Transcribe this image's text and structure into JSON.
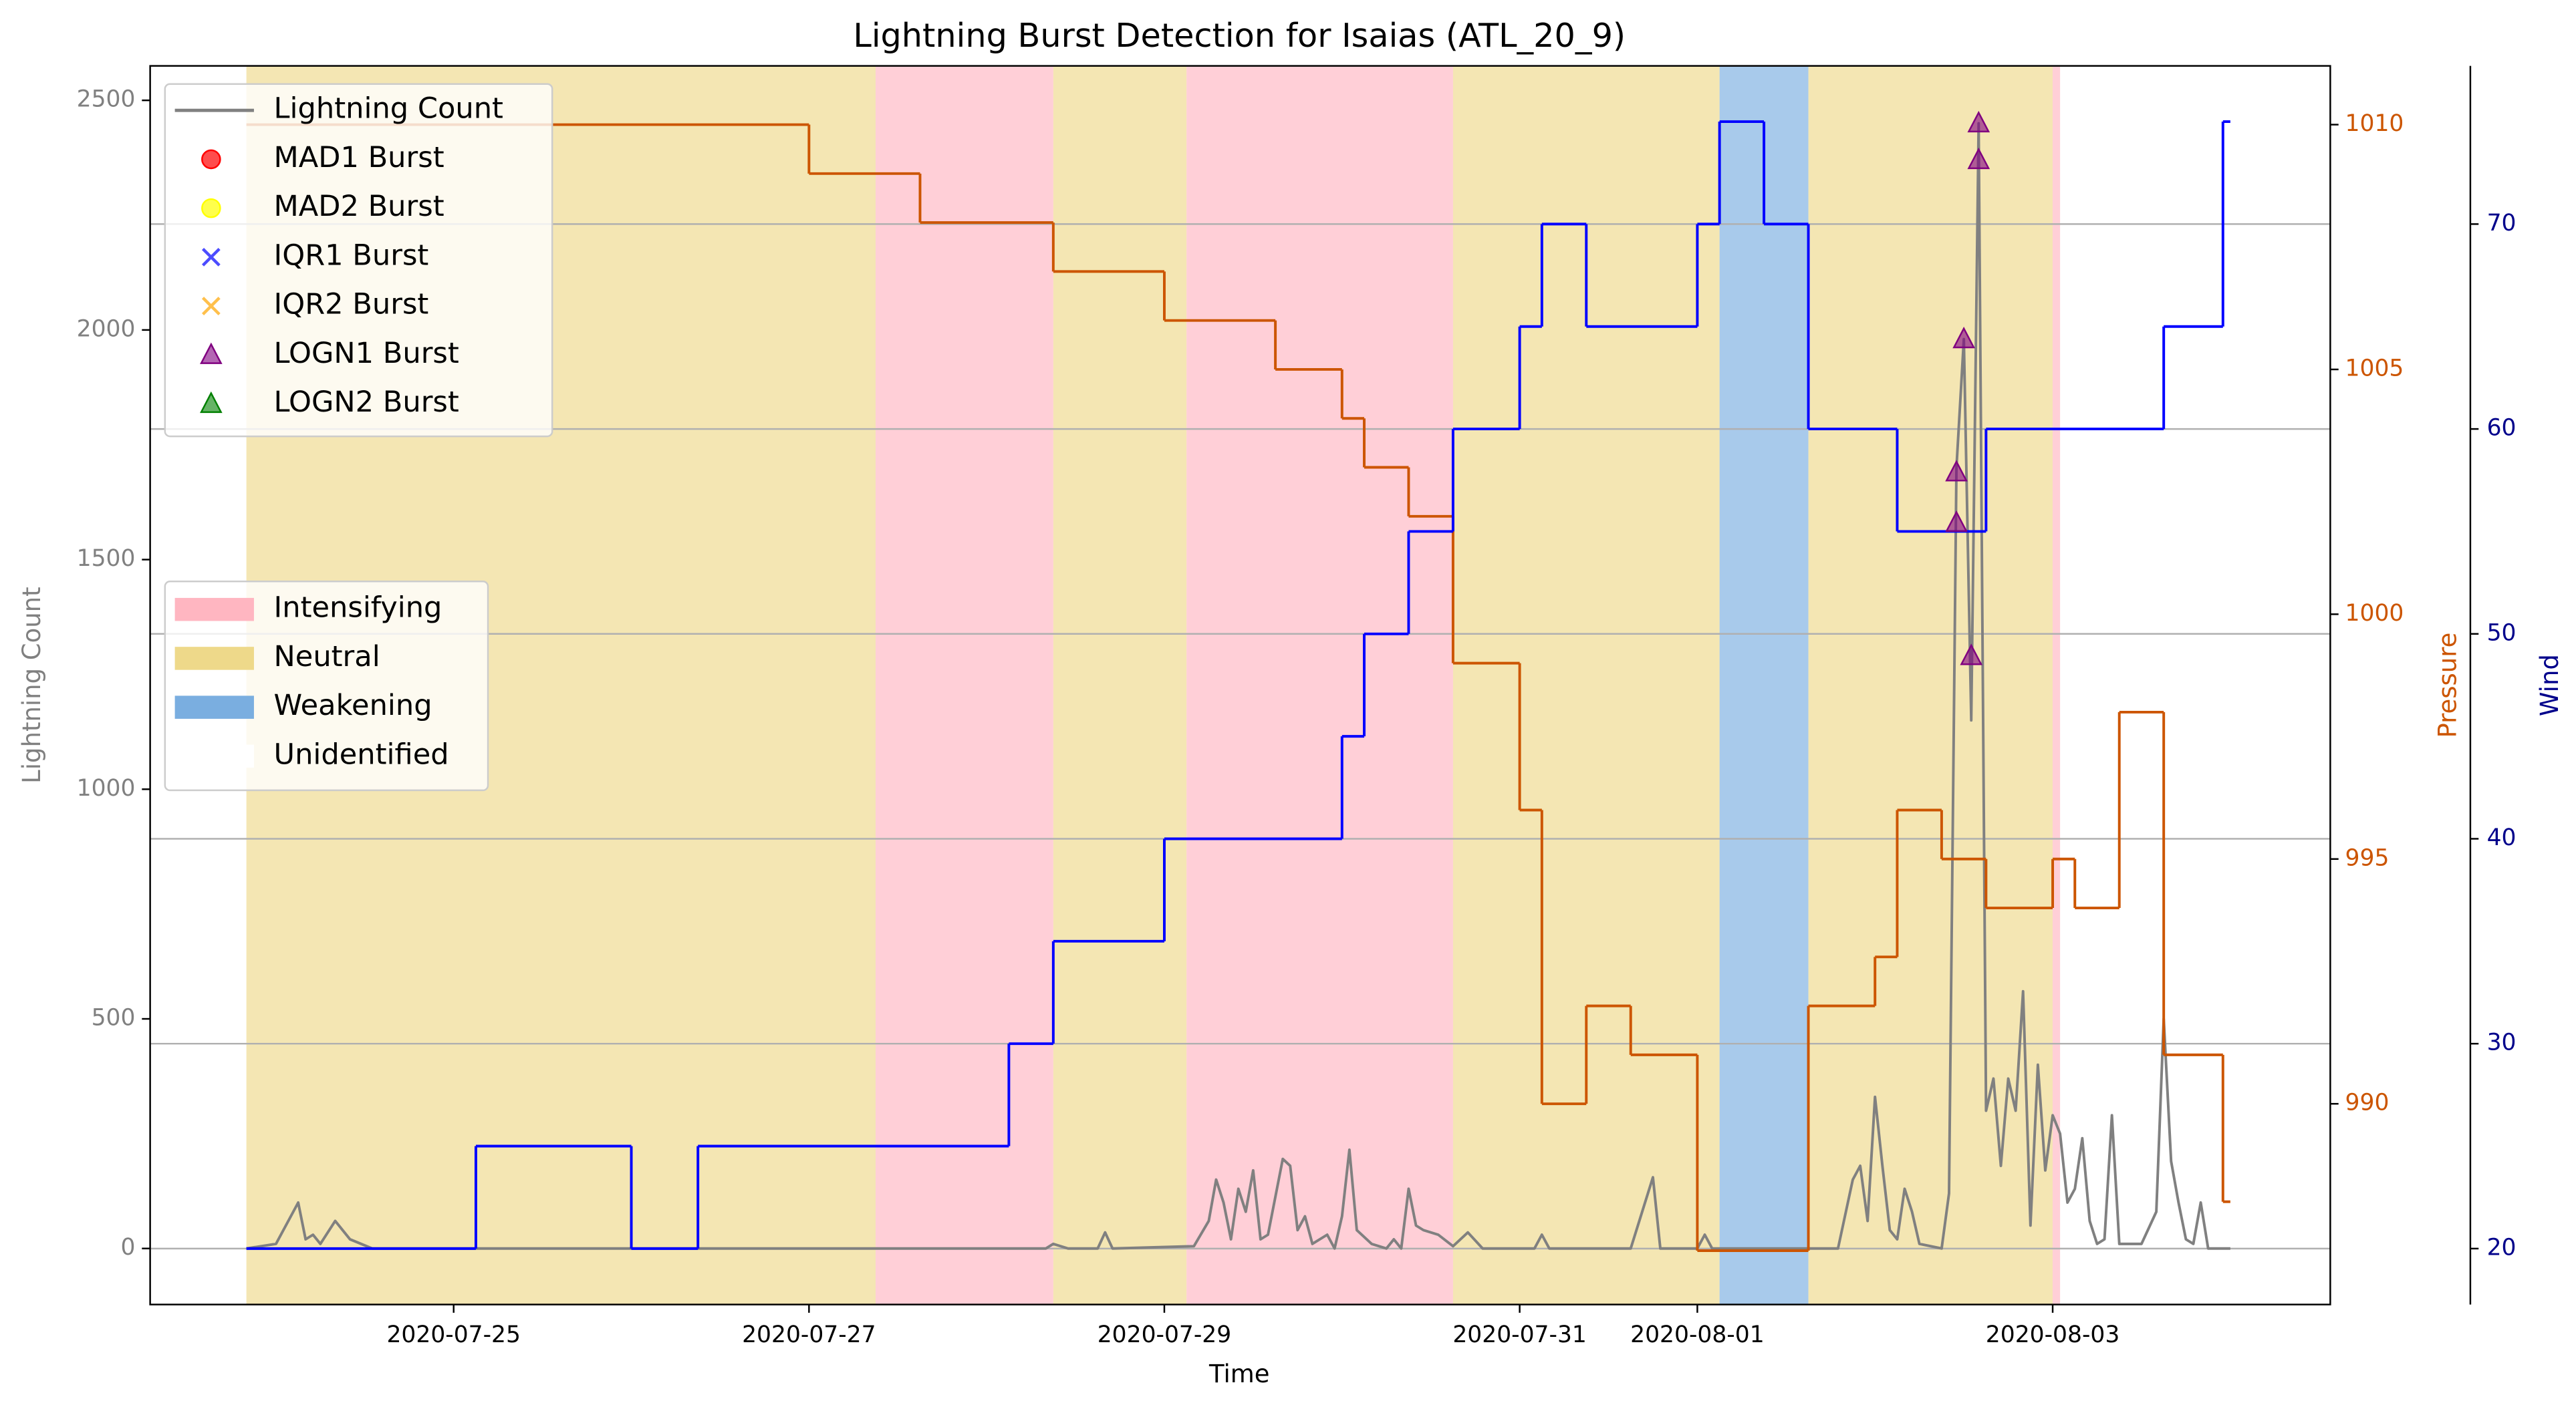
{
  "chart_data": {
    "type": "line",
    "title": "Lightning Burst Detection for Isaias (ATL_20_9)",
    "xlabel": "Time",
    "ylabel": "Lightning Count",
    "y2label": "Pressure",
    "y3label": "Wind",
    "xlim": [
      "2020-07-23 07:00",
      "2020-08-04 13:30"
    ],
    "xticks": [
      "2020-07-25",
      "2020-07-27",
      "2020-07-29",
      "2020-07-31",
      "2020-08-01",
      "2020-08-03"
    ],
    "ylim": [
      -122,
      2575
    ],
    "yticks": [
      0,
      500,
      1000,
      1500,
      2000,
      2500
    ],
    "y2lim": [
      985.9,
      1011.2
    ],
    "y2ticks": [
      990,
      995,
      1000,
      1005,
      1010
    ],
    "y3lim": [
      17.27,
      77.72
    ],
    "y3ticks": [
      20,
      30,
      40,
      50,
      60,
      70
    ],
    "grid_axis": "y3",
    "ylabel_color": "#808080",
    "y2_color": "#cc5500",
    "y3_color": "#00008b",
    "phases": [
      {
        "name": "Intensifying",
        "color": "#ffb6c1"
      },
      {
        "name": "Neutral",
        "color": "#eed98a"
      },
      {
        "name": "Weakening",
        "color": "#7aaee0"
      },
      {
        "name": "Unidentified",
        "color": "#ffffff"
      }
    ],
    "periods": [
      {
        "phase": "Neutral",
        "start": "2020-07-23 20:00",
        "end": "2020-07-27 09:00"
      },
      {
        "phase": "Intensifying",
        "start": "2020-07-27 09:00",
        "end": "2020-07-28 09:00"
      },
      {
        "phase": "Neutral",
        "start": "2020-07-28 09:00",
        "end": "2020-07-29 03:00"
      },
      {
        "phase": "Intensifying",
        "start": "2020-07-29 03:00",
        "end": "2020-07-30 15:00"
      },
      {
        "phase": "Neutral",
        "start": "2020-07-30 15:00",
        "end": "2020-08-01 03:00"
      },
      {
        "phase": "Weakening",
        "start": "2020-08-01 03:00",
        "end": "2020-08-01 15:00"
      },
      {
        "phase": "Neutral",
        "start": "2020-08-01 15:00",
        "end": "2020-08-03 00:00"
      },
      {
        "phase": "Intensifying",
        "start": "2020-08-03 00:00",
        "end": "2020-08-03 01:00"
      }
    ],
    "series": [
      {
        "name": "Lightning Count",
        "type": "line",
        "axis": "y",
        "color": "#808080",
        "x": [
          "2020-07-23 20:00",
          "2020-07-24 00:00",
          "2020-07-24 03:00",
          "2020-07-24 04:00",
          "2020-07-24 05:00",
          "2020-07-24 06:00",
          "2020-07-24 08:00",
          "2020-07-24 10:00",
          "2020-07-24 13:00",
          "2020-07-28 08:00",
          "2020-07-28 09:00",
          "2020-07-28 11:00",
          "2020-07-28 15:00",
          "2020-07-28 16:00",
          "2020-07-28 17:00",
          "2020-07-29 04:00",
          "2020-07-29 06:00",
          "2020-07-29 07:00",
          "2020-07-29 08:00",
          "2020-07-29 09:00",
          "2020-07-29 10:00",
          "2020-07-29 11:00",
          "2020-07-29 12:00",
          "2020-07-29 13:00",
          "2020-07-29 14:00",
          "2020-07-29 16:00",
          "2020-07-29 17:00",
          "2020-07-29 18:00",
          "2020-07-29 19:00",
          "2020-07-29 20:00",
          "2020-07-29 22:00",
          "2020-07-29 23:00",
          "2020-07-30 00:00",
          "2020-07-30 01:00",
          "2020-07-30 02:00",
          "2020-07-30 04:00",
          "2020-07-30 06:00",
          "2020-07-30 07:00",
          "2020-07-30 08:00",
          "2020-07-30 09:00",
          "2020-07-30 10:00",
          "2020-07-30 11:00",
          "2020-07-30 13:00",
          "2020-07-30 15:00",
          "2020-07-30 17:00",
          "2020-07-30 19:00",
          "2020-07-31 02:00",
          "2020-07-31 03:00",
          "2020-07-31 04:00",
          "2020-07-31 15:00",
          "2020-07-31 18:00",
          "2020-07-31 19:00",
          "2020-08-01 00:00",
          "2020-08-01 01:00",
          "2020-08-01 02:00",
          "2020-08-01 19:00",
          "2020-08-01 21:00",
          "2020-08-01 22:00",
          "2020-08-01 23:00",
          "2020-08-02 00:00",
          "2020-08-02 01:00",
          "2020-08-02 02:00",
          "2020-08-02 03:00",
          "2020-08-02 04:00",
          "2020-08-02 05:00",
          "2020-08-02 06:00",
          "2020-08-02 09:00",
          "2020-08-02 10:00",
          "2020-08-02 11:00",
          "2020-08-02 12:00",
          "2020-08-02 13:00",
          "2020-08-02 14:00",
          "2020-08-02 15:00",
          "2020-08-02 16:00",
          "2020-08-02 17:00",
          "2020-08-02 18:00",
          "2020-08-02 19:00",
          "2020-08-02 20:00",
          "2020-08-02 21:00",
          "2020-08-02 22:00",
          "2020-08-02 23:00",
          "2020-08-03 00:00",
          "2020-08-03 01:00",
          "2020-08-03 02:00",
          "2020-08-03 03:00",
          "2020-08-03 04:00",
          "2020-08-03 05:00",
          "2020-08-03 06:00",
          "2020-08-03 07:00",
          "2020-08-03 08:00",
          "2020-08-03 09:00",
          "2020-08-03 12:00",
          "2020-08-03 14:00",
          "2020-08-03 15:00",
          "2020-08-03 16:00",
          "2020-08-03 17:00",
          "2020-08-03 18:00",
          "2020-08-03 19:00",
          "2020-08-03 20:00",
          "2020-08-03 21:00",
          "2020-08-04 00:00"
        ],
        "values": [
          0,
          10,
          100,
          20,
          30,
          10,
          60,
          20,
          0,
          0,
          10,
          0,
          0,
          35,
          0,
          5,
          60,
          150,
          100,
          20,
          130,
          80,
          170,
          20,
          30,
          195,
          180,
          40,
          70,
          10,
          30,
          0,
          70,
          215,
          40,
          10,
          0,
          20,
          0,
          130,
          50,
          40,
          30,
          5,
          35,
          0,
          0,
          30,
          0,
          0,
          155,
          0,
          0,
          30,
          0,
          0,
          150,
          180,
          60,
          330,
          180,
          40,
          20,
          130,
          80,
          10,
          0,
          120,
          1700,
          1980,
          1150,
          2450,
          300,
          370,
          180,
          370,
          300,
          560,
          50,
          400,
          170,
          290,
          250,
          100,
          130,
          240,
          60,
          10,
          20,
          290,
          10,
          10,
          80,
          500,
          190,
          100,
          20,
          10,
          100,
          0,
          0
        ]
      },
      {
        "type": "step",
        "axis": "y2",
        "color": "#cc5500",
        "x": [
          "2020-07-23 20:00",
          "2020-07-27 00:00",
          "2020-07-27 15:00",
          "2020-07-28 09:00",
          "2020-07-29 00:00",
          "2020-07-29 15:00",
          "2020-07-30 00:00",
          "2020-07-30 03:00",
          "2020-07-30 09:00",
          "2020-07-30 15:00",
          "2020-07-31 00:00",
          "2020-07-31 03:00",
          "2020-07-31 09:00",
          "2020-07-31 15:00",
          "2020-08-01 00:00",
          "2020-08-01 15:00",
          "2020-08-02 00:00",
          "2020-08-02 03:00",
          "2020-08-02 09:00",
          "2020-08-02 15:00",
          "2020-08-03 00:00",
          "2020-08-03 03:00",
          "2020-08-03 09:00",
          "2020-08-03 15:00",
          "2020-08-03 23:00",
          "2020-08-04 00:00"
        ],
        "values": [
          1010,
          1009,
          1008,
          1007,
          1006,
          1005,
          1004,
          1003,
          1002,
          999,
          996,
          990,
          992,
          991,
          987,
          992,
          993,
          996,
          995,
          994,
          995,
          994,
          998,
          991,
          988,
          988
        ]
      },
      {
        "type": "step",
        "axis": "y3",
        "color": "#0000ff",
        "x": [
          "2020-07-23 20:00",
          "2020-07-25 03:00",
          "2020-07-26 00:00",
          "2020-07-26 09:00",
          "2020-07-28 03:00",
          "2020-07-28 09:00",
          "2020-07-29 00:00",
          "2020-07-30 00:00",
          "2020-07-30 03:00",
          "2020-07-30 09:00",
          "2020-07-30 15:00",
          "2020-07-31 00:00",
          "2020-07-31 03:00",
          "2020-07-31 09:00",
          "2020-08-01 00:00",
          "2020-08-01 03:00",
          "2020-08-01 09:00",
          "2020-08-01 15:00",
          "2020-08-02 03:00",
          "2020-08-02 15:00",
          "2020-08-03 15:00",
          "2020-08-03 23:00",
          "2020-08-04 00:00"
        ],
        "values": [
          20,
          25,
          20,
          25,
          30,
          35,
          40,
          45,
          50,
          55,
          60,
          65,
          70,
          65,
          70,
          75,
          70,
          60,
          55,
          60,
          65,
          75,
          75
        ]
      },
      {
        "name": "MAD1 Burst",
        "type": "scatter",
        "axis": "y",
        "color": "#ff0000",
        "marker": "o",
        "x": [],
        "values": []
      },
      {
        "name": "MAD2 Burst",
        "type": "scatter",
        "axis": "y",
        "color": "#ffff00",
        "marker": "o",
        "x": [],
        "values": []
      },
      {
        "name": "IQR1 Burst",
        "type": "scatter",
        "axis": "y",
        "color": "#0000ff",
        "marker": "x",
        "x": [],
        "values": []
      },
      {
        "name": "IQR2 Burst",
        "type": "scatter",
        "axis": "y",
        "color": "#ffa500",
        "marker": "x",
        "x": [],
        "values": []
      },
      {
        "name": "LOGN1 Burst",
        "type": "scatter",
        "axis": "y",
        "color": "#800080",
        "marker": "^",
        "x": [
          "2020-08-02 11:00",
          "2020-08-02 11:00",
          "2020-08-02 12:00",
          "2020-08-02 13:00",
          "2020-08-02 14:00",
          "2020-08-02 14:00"
        ],
        "values": [
          1690,
          1580,
          1980,
          1290,
          2450,
          2370
        ]
      },
      {
        "name": "LOGN2 Burst",
        "type": "scatter",
        "axis": "y",
        "color": "#008000",
        "marker": "^",
        "x": [],
        "values": []
      }
    ]
  }
}
